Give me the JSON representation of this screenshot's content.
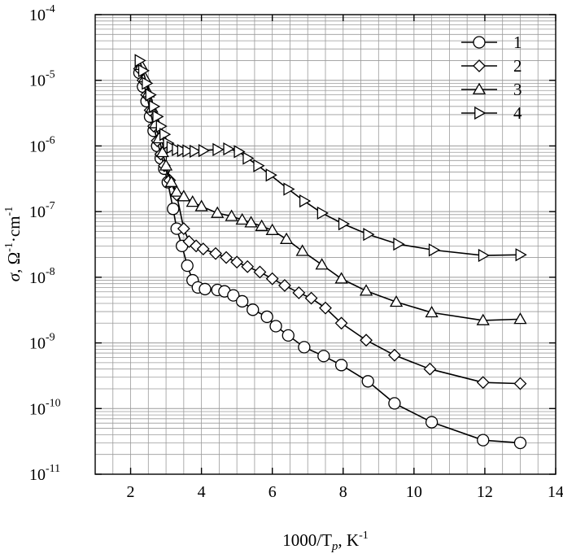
{
  "chart_data": {
    "type": "line",
    "xlabel": "1000/T",
    "xlabel_sub": "p",
    "xlabel_unit": ", K",
    "xlabel_unit_sup": "-1",
    "ylabel_sigma": "σ",
    "ylabel_rest": ", Ω",
    "ylabel_sup1": "-1",
    "ylabel_mid": "·cm",
    "ylabel_sup2": "-1",
    "xlim": [
      1,
      14
    ],
    "ylim": [
      1e-11,
      0.0001
    ],
    "yscale": "log",
    "grid": true,
    "legend_position": "top-right",
    "x_ticks": [
      {
        "value": 2,
        "label": "2"
      },
      {
        "value": 4,
        "label": "4"
      },
      {
        "value": 6,
        "label": "6"
      },
      {
        "value": 8,
        "label": "8"
      },
      {
        "value": 10,
        "label": "10"
      },
      {
        "value": 12,
        "label": "12"
      },
      {
        "value": 14,
        "label": "14"
      }
    ],
    "y_ticks": [
      {
        "exp": -4,
        "base": "10",
        "sup": "-4"
      },
      {
        "exp": -5,
        "base": "10",
        "sup": "-5"
      },
      {
        "exp": -6,
        "base": "10",
        "sup": "-6"
      },
      {
        "exp": -7,
        "base": "10",
        "sup": "-7"
      },
      {
        "exp": -8,
        "base": "10",
        "sup": "-8"
      },
      {
        "exp": -9,
        "base": "10",
        "sup": "-9"
      },
      {
        "exp": -10,
        "base": "10",
        "sup": "-10"
      },
      {
        "exp": -11,
        "base": "10",
        "sup": "-11"
      }
    ],
    "series": [
      {
        "name": "1",
        "marker": "circle",
        "x": [
          2.25,
          2.35,
          2.45,
          2.55,
          2.65,
          2.75,
          2.85,
          2.95,
          3.05,
          3.2,
          3.3,
          3.45,
          3.6,
          3.75,
          3.9,
          4.1,
          4.45,
          4.65,
          4.9,
          5.15,
          5.45,
          5.85,
          6.1,
          6.45,
          6.9,
          7.45,
          7.95,
          8.7,
          9.45,
          10.5,
          11.95,
          13.0
        ],
        "y": [
          1.3e-05,
          8e-06,
          4.8e-06,
          2.8e-06,
          1.7e-06,
          1e-06,
          6.5e-07,
          4.5e-07,
          2.8e-07,
          1.1e-07,
          5.5e-08,
          3e-08,
          1.5e-08,
          9e-09,
          7e-09,
          6.6e-09,
          6.4e-09,
          6.1e-09,
          5.3e-09,
          4.3e-09,
          3.2e-09,
          2.5e-09,
          1.8e-09,
          1.3e-09,
          8.6e-10,
          6.3e-10,
          4.6e-10,
          2.6e-10,
          1.2e-10,
          6.2e-11,
          3.3e-11,
          3e-11
        ]
      },
      {
        "name": "2",
        "marker": "diamond",
        "x": [
          2.25,
          2.35,
          2.45,
          2.55,
          2.65,
          2.75,
          2.85,
          2.95,
          3.1,
          3.3,
          3.5,
          3.65,
          3.85,
          4.05,
          4.4,
          4.7,
          5.0,
          5.3,
          5.65,
          6.0,
          6.35,
          6.75,
          7.1,
          7.5,
          7.95,
          8.65,
          9.45,
          10.45,
          11.95,
          13.0
        ],
        "y": [
          1.5e-05,
          1e-05,
          6e-06,
          3.5e-06,
          2e-06,
          1.2e-06,
          7.5e-07,
          5e-07,
          3e-07,
          1.8e-07,
          5.5e-08,
          3.5e-08,
          3e-08,
          2.7e-08,
          2.3e-08,
          2e-08,
          1.7e-08,
          1.45e-08,
          1.2e-08,
          9.5e-09,
          7.5e-09,
          5.8e-09,
          4.8e-09,
          3.4e-09,
          2e-09,
          1.1e-09,
          6.5e-10,
          4e-10,
          2.5e-10,
          2.4e-10
        ]
      },
      {
        "name": "3",
        "marker": "triangle-up",
        "x": [
          2.3,
          2.4,
          2.5,
          2.6,
          2.7,
          2.8,
          2.9,
          3.0,
          3.15,
          3.3,
          3.5,
          3.75,
          4.0,
          4.45,
          4.85,
          5.15,
          5.4,
          5.7,
          6.0,
          6.4,
          6.85,
          7.4,
          7.95,
          8.65,
          9.5,
          10.5,
          11.95,
          13.0
        ],
        "y": [
          1.7e-05,
          1.1e-05,
          6.5e-06,
          3.8e-06,
          2.2e-06,
          1.3e-06,
          8e-07,
          5e-07,
          2.8e-07,
          2e-07,
          1.7e-07,
          1.4e-07,
          1.2e-07,
          9.5e-08,
          8.5e-08,
          7.5e-08,
          6.8e-08,
          6e-08,
          5.2e-08,
          3.8e-08,
          2.5e-08,
          1.55e-08,
          9.5e-09,
          6.2e-09,
          4.2e-09,
          2.9e-09,
          2.2e-09,
          2.3e-09
        ]
      },
      {
        "name": "4",
        "marker": "triangle-right",
        "x": [
          2.25,
          2.35,
          2.45,
          2.55,
          2.65,
          2.75,
          2.85,
          2.95,
          3.05,
          3.15,
          3.3,
          3.45,
          3.6,
          3.8,
          4.05,
          4.45,
          4.75,
          5.05,
          5.3,
          5.6,
          5.95,
          6.45,
          6.9,
          7.4,
          8.0,
          8.7,
          9.55,
          10.55,
          11.95,
          13.0
        ],
        "y": [
          2e-05,
          1.4e-05,
          9e-06,
          6e-06,
          4e-06,
          2.8e-06,
          2e-06,
          1.5e-06,
          1.1e-06,
          9.5e-07,
          8.8e-07,
          8.5e-07,
          8.4e-07,
          8.3e-07,
          8.5e-07,
          8.8e-07,
          9e-07,
          8.2e-07,
          6.5e-07,
          5e-07,
          3.6e-07,
          2.2e-07,
          1.45e-07,
          9.5e-08,
          6.5e-08,
          4.5e-08,
          3.2e-08,
          2.6e-08,
          2.15e-08,
          2.2e-08
        ]
      }
    ]
  }
}
